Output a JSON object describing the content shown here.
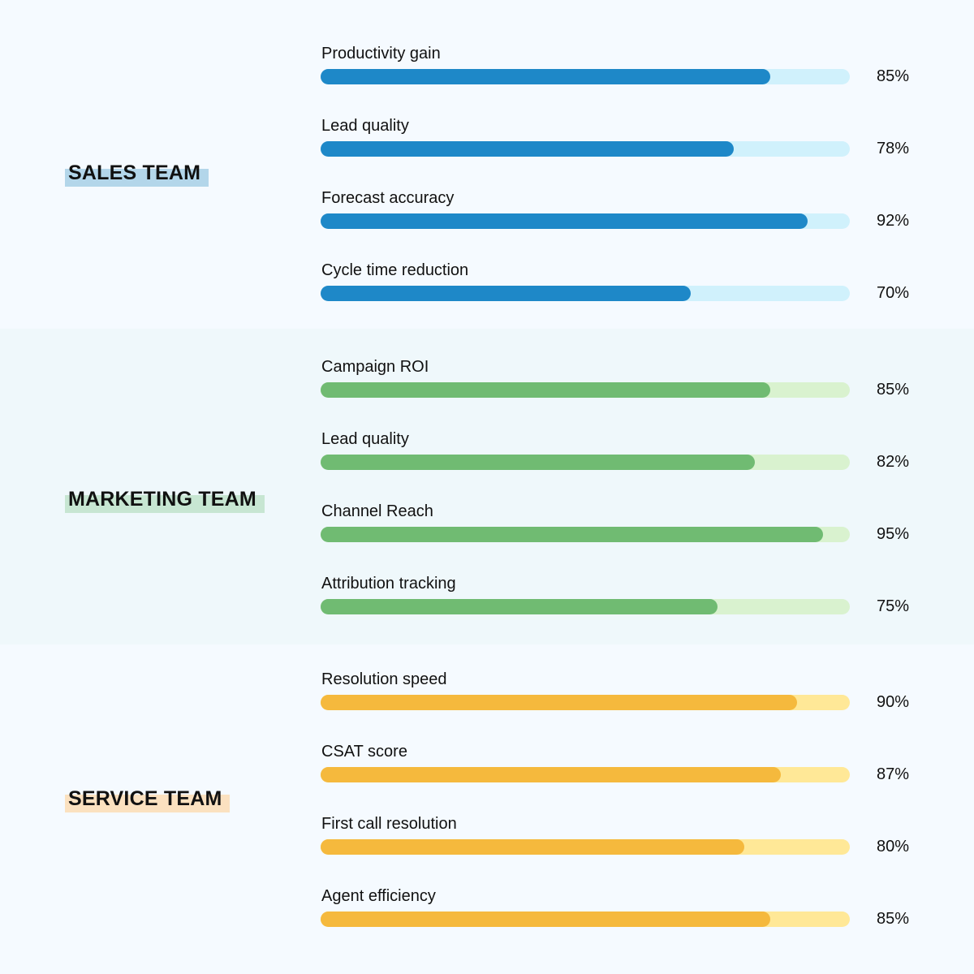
{
  "chart_data": {
    "type": "bar",
    "orientation": "horizontal",
    "title": "",
    "xlim": [
      0,
      100
    ],
    "unit": "%",
    "grid": false,
    "legend": null,
    "groups": [
      {
        "name": "SALES TEAM",
        "color": "#1e88c8",
        "track_color": "#d0f1fc",
        "highlight_color": "#b3d6ea",
        "categories": [
          "Productivity gain",
          "Lead quality",
          "Forecast accuracy",
          "Cycle time reduction"
        ],
        "values": [
          85,
          78,
          92,
          70
        ]
      },
      {
        "name": "MARKETING TEAM",
        "color": "#70bb72",
        "track_color": "#d9f2cf",
        "highlight_color": "#c7e6d2",
        "categories": [
          "Campaign ROI",
          "Lead quality",
          "Channel Reach",
          "Attribution tracking"
        ],
        "values": [
          85,
          82,
          95,
          75
        ]
      },
      {
        "name": "SERVICE TEAM",
        "color": "#f5b93d",
        "track_color": "#ffe897",
        "highlight_color": "#fbe1c0",
        "categories": [
          "Resolution speed",
          "CSAT score",
          "First call resolution",
          "Agent efficiency"
        ],
        "values": [
          90,
          87,
          80,
          85
        ]
      }
    ]
  },
  "sections": [
    {
      "id": "sales",
      "label": "SALES TEAM",
      "metrics": [
        {
          "name": "Productivity gain",
          "value": 85,
          "pct": "85%"
        },
        {
          "name": "Lead quality",
          "value": 78,
          "pct": "78%"
        },
        {
          "name": "Forecast accuracy",
          "value": 92,
          "pct": "92%"
        },
        {
          "name": "Cycle time reduction",
          "value": 70,
          "pct": "70%"
        }
      ]
    },
    {
      "id": "marketing",
      "label": "MARKETING TEAM",
      "metrics": [
        {
          "name": "Campaign ROI",
          "value": 85,
          "pct": "85%"
        },
        {
          "name": "Lead quality",
          "value": 82,
          "pct": "82%"
        },
        {
          "name": "Channel Reach",
          "value": 95,
          "pct": "95%"
        },
        {
          "name": "Attribution tracking",
          "value": 75,
          "pct": "75%"
        }
      ]
    },
    {
      "id": "service",
      "label": "SERVICE TEAM",
      "metrics": [
        {
          "name": "Resolution speed",
          "value": 90,
          "pct": "90%"
        },
        {
          "name": "CSAT score",
          "value": 87,
          "pct": "87%"
        },
        {
          "name": "First call resolution",
          "value": 80,
          "pct": "80%"
        },
        {
          "name": "Agent efficiency",
          "value": 85,
          "pct": "85%"
        }
      ]
    }
  ]
}
